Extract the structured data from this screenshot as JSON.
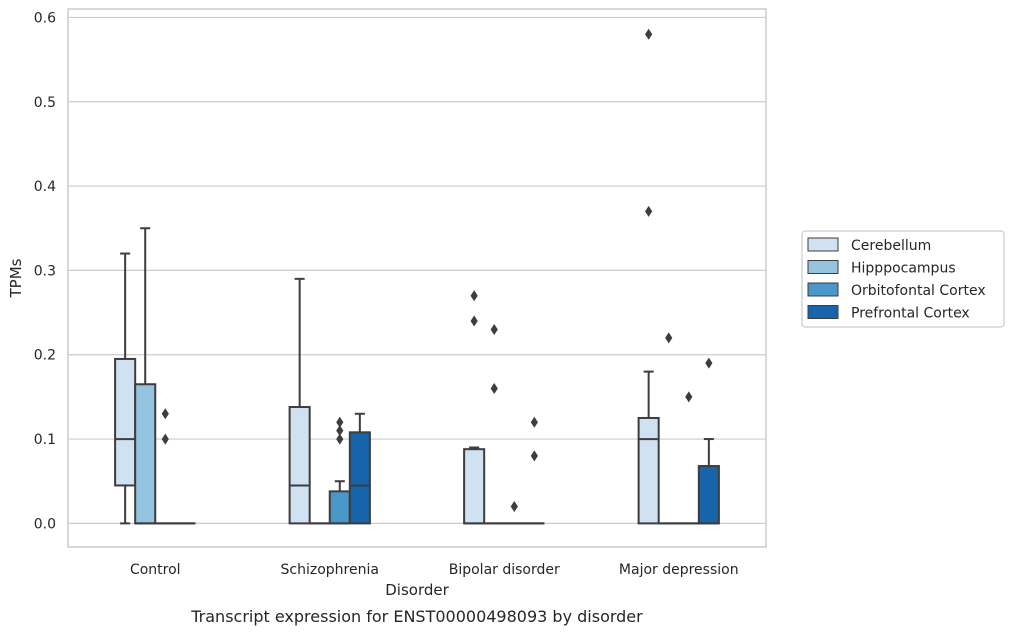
{
  "chart_data": {
    "type": "box",
    "title": "",
    "caption": "Transcript expression for ENST00000498093 by disorder",
    "xlabel": "Disorder",
    "ylabel": "TPMs",
    "ylim": [
      -0.028,
      0.61
    ],
    "yticks": [
      0.0,
      0.1,
      0.2,
      0.3,
      0.4,
      0.5,
      0.6
    ],
    "ytick_labels": [
      "0.0",
      "0.1",
      "0.2",
      "0.3",
      "0.4",
      "0.5",
      "0.6"
    ],
    "grid": "horizontal",
    "legend_position": "right",
    "categories": [
      "Control",
      "Schizophrenia",
      "Bipolar disorder",
      "Major depression"
    ],
    "series": [
      {
        "name": "Cerebellum",
        "color": "#d0e1f2",
        "boxes": [
          {
            "whisker_low": 0.0,
            "q1": 0.045,
            "median": 0.1,
            "q3": 0.195,
            "whisker_high": 0.32,
            "outliers": []
          },
          {
            "whisker_low": 0.0,
            "q1": 0.0,
            "median": 0.045,
            "q3": 0.138,
            "whisker_high": 0.29,
            "outliers": []
          },
          {
            "whisker_low": 0.0,
            "q1": 0.0,
            "median": 0.0,
            "q3": 0.088,
            "whisker_high": 0.09,
            "outliers": [
              0.24,
              0.27
            ]
          },
          {
            "whisker_low": 0.0,
            "q1": 0.0,
            "median": 0.1,
            "q3": 0.125,
            "whisker_high": 0.18,
            "outliers": [
              0.37,
              0.58
            ]
          }
        ]
      },
      {
        "name": "Hipppocampus",
        "color": "#94c4df",
        "boxes": [
          {
            "whisker_low": 0.0,
            "q1": 0.0,
            "median": 0.0,
            "q3": 0.165,
            "whisker_high": 0.35,
            "outliers": []
          },
          {
            "whisker_low": 0.0,
            "q1": 0.0,
            "median": 0.0,
            "q3": 0.0,
            "whisker_high": 0.0,
            "outliers": []
          },
          {
            "whisker_low": 0.0,
            "q1": 0.0,
            "median": 0.0,
            "q3": 0.0,
            "whisker_high": 0.0,
            "outliers": [
              0.16,
              0.23
            ]
          },
          {
            "whisker_low": 0.0,
            "q1": 0.0,
            "median": 0.0,
            "q3": 0.0,
            "whisker_high": 0.0,
            "outliers": [
              0.22
            ]
          }
        ]
      },
      {
        "name": "Orbitofontal Cortex",
        "color": "#4a98c9",
        "boxes": [
          {
            "whisker_low": 0.0,
            "q1": 0.0,
            "median": 0.0,
            "q3": 0.0,
            "whisker_high": 0.0,
            "outliers": [
              0.1,
              0.13
            ]
          },
          {
            "whisker_low": 0.0,
            "q1": 0.0,
            "median": 0.0,
            "q3": 0.038,
            "whisker_high": 0.05,
            "outliers": [
              0.1,
              0.11,
              0.12
            ]
          },
          {
            "whisker_low": 0.0,
            "q1": 0.0,
            "median": 0.0,
            "q3": 0.0,
            "whisker_high": 0.0,
            "outliers": [
              0.02
            ]
          },
          {
            "whisker_low": 0.0,
            "q1": 0.0,
            "median": 0.0,
            "q3": 0.0,
            "whisker_high": 0.0,
            "outliers": [
              0.15
            ]
          }
        ]
      },
      {
        "name": "Prefrontal Cortex",
        "color": "#1764ab",
        "boxes": [
          {
            "whisker_low": 0.0,
            "q1": 0.0,
            "median": 0.0,
            "q3": 0.0,
            "whisker_high": 0.0,
            "outliers": []
          },
          {
            "whisker_low": 0.0,
            "q1": 0.0,
            "median": 0.045,
            "q3": 0.108,
            "whisker_high": 0.13,
            "outliers": []
          },
          {
            "whisker_low": 0.0,
            "q1": 0.0,
            "median": 0.0,
            "q3": 0.0,
            "whisker_high": 0.0,
            "outliers": [
              0.08,
              0.12
            ]
          },
          {
            "whisker_low": 0.0,
            "q1": 0.0,
            "median": 0.0,
            "q3": 0.068,
            "whisker_high": 0.1,
            "outliers": [
              0.19
            ]
          }
        ]
      }
    ],
    "colors": {
      "grid": "#cccccc",
      "frame": "#cccccc",
      "box_edge": "#3d3d3d",
      "legend_border": "#cccccc"
    }
  }
}
